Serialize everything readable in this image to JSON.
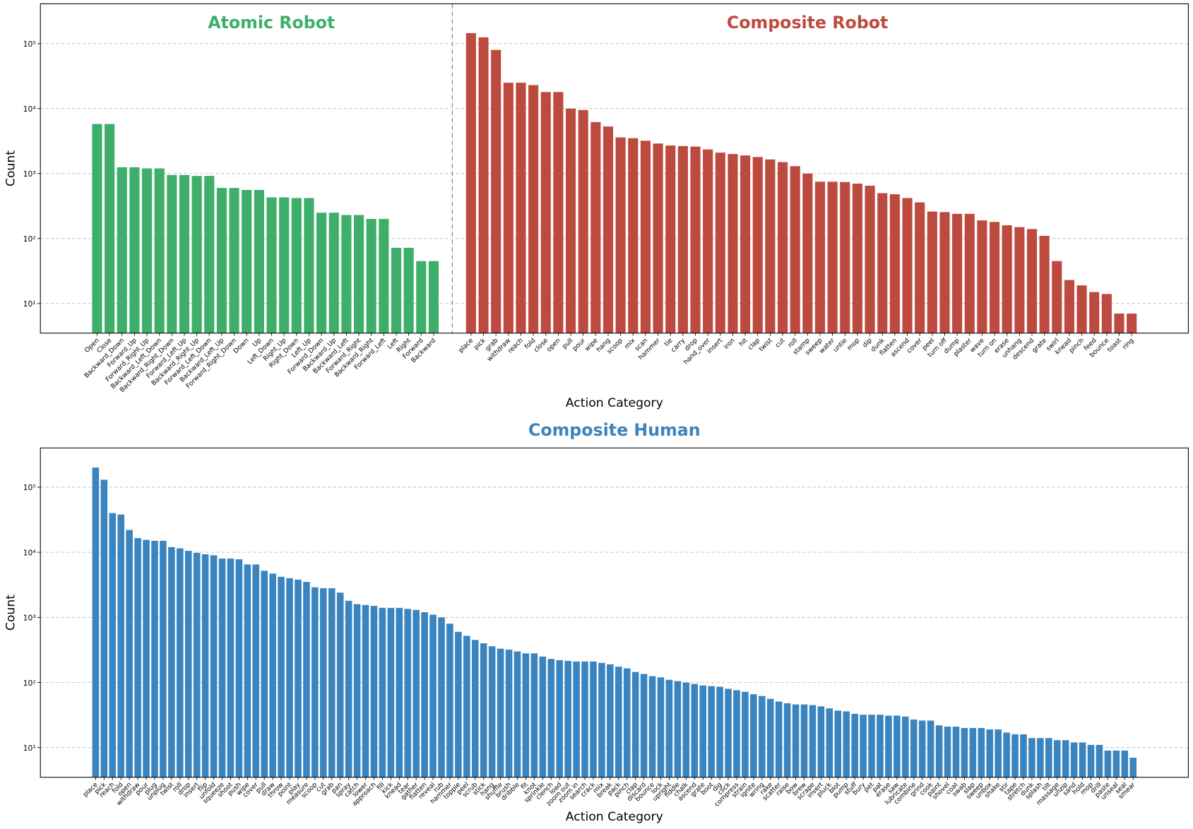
{
  "chart_data": [
    {
      "type": "bar",
      "xlabel": "Action Category",
      "ylabel": "Count",
      "log": true,
      "grid": true,
      "ylim": [
        3.5,
        410000
      ],
      "yticks": [
        {
          "value": 10,
          "label": "10¹"
        },
        {
          "value": 100,
          "label": "10²"
        },
        {
          "value": 1000,
          "label": "10³"
        },
        {
          "value": 10000,
          "label": "10⁴"
        },
        {
          "value": 100000,
          "label": "10⁵"
        }
      ],
      "series": [
        {
          "name": "Atomic Robot",
          "color": "#3daf6a",
          "categories": [
            "Open",
            "Close",
            "Backward_Down",
            "Forward_Up",
            "Forward_Right_Up",
            "Backward_Left_Down",
            "Backward_Right_Down",
            "Forward_Left_Up",
            "Backward_Right_Up",
            "Forward_Left_Down",
            "Backward_Left_Up",
            "Forward_Right_Down",
            "Down",
            "Up",
            "Left_Down",
            "Right_Up",
            "Right_Down",
            "Left_Up",
            "Forward_Down",
            "Backward_Up",
            "Backward_Left",
            "Forward_Right",
            "Backward_Right",
            "Forward_Left",
            "Left",
            "Right",
            "Forward",
            "Backward"
          ],
          "values": [
            5800,
            5800,
            1250,
            1250,
            1200,
            1200,
            950,
            950,
            920,
            920,
            600,
            600,
            560,
            560,
            430,
            430,
            420,
            420,
            250,
            250,
            230,
            230,
            200,
            200,
            72,
            72,
            45,
            45
          ]
        },
        {
          "name": "Composite Robot",
          "color": "#bd4a3e",
          "categories": [
            "place",
            "pick",
            "grab",
            "withdraw",
            "reach",
            "fold",
            "close",
            "open",
            "pull",
            "pour",
            "wipe",
            "hang",
            "scoop",
            "mix",
            "scan",
            "hammer",
            "tie",
            "carry",
            "drop",
            "hand_over",
            "insert",
            "iron",
            "hit",
            "clap",
            "twist",
            "cut",
            "roll",
            "stamp",
            "sweep",
            "water",
            "untie",
            "mop",
            "dip",
            "dunk",
            "flatten",
            "ascend",
            "cover",
            "peel",
            "turn off",
            "dump",
            "plaster",
            "wave",
            "turn on",
            "erase",
            "unhang",
            "descend",
            "grate",
            "swirl",
            "knead",
            "pinch",
            "feed",
            "bounce",
            "toast",
            "ring"
          ],
          "values": [
            145000,
            125000,
            80000,
            25000,
            25000,
            23000,
            18000,
            18000,
            10000,
            9500,
            6200,
            5300,
            3600,
            3500,
            3200,
            2900,
            2700,
            2650,
            2600,
            2350,
            2100,
            2000,
            1900,
            1800,
            1650,
            1500,
            1300,
            1000,
            750,
            750,
            740,
            700,
            650,
            500,
            480,
            420,
            360,
            260,
            255,
            240,
            240,
            190,
            180,
            160,
            150,
            140,
            110,
            45,
            23,
            19,
            15,
            14,
            7,
            7
          ]
        }
      ]
    },
    {
      "type": "bar",
      "title": "Composite Human",
      "xlabel": "Action Category",
      "ylabel": "Count",
      "log": true,
      "grid": true,
      "color": "#3a84bf",
      "ylim": [
        3.5,
        400000
      ],
      "yticks": [
        {
          "value": 10,
          "label": "10¹"
        },
        {
          "value": 100,
          "label": "10²"
        },
        {
          "value": 1000,
          "label": "10³"
        },
        {
          "value": 10000,
          "label": "10⁴"
        },
        {
          "value": 100000,
          "label": "10⁵"
        }
      ],
      "categories": [
        "place",
        "pick",
        "reach",
        "fold",
        "open",
        "withdraw",
        "pour",
        "plug",
        "unplug",
        "twist",
        "roll",
        "drop",
        "insert",
        "flip",
        "unfold",
        "squeeze",
        "shoot",
        "push",
        "wipe",
        "cover",
        "pull",
        "draw",
        "throw",
        "point",
        "play",
        "measure",
        "scoop",
        "cut",
        "grab",
        "pan",
        "spray",
        "catch",
        "lower",
        "approach",
        "fill",
        "kick",
        "knead",
        "tear",
        "gather",
        "flatten",
        "reveal",
        "rub",
        "hammer",
        "topple",
        "peel",
        "scrub",
        "stick",
        "hang",
        "shuffle",
        "brush",
        "dribble",
        "fit",
        "knot",
        "sprinkle",
        "clench",
        "load",
        "zoom out",
        "zoom in",
        "search",
        "crack",
        "mix",
        "break",
        "pack",
        "pinch",
        "clap",
        "discard",
        "bounce",
        "lock",
        "upright",
        "fiddle",
        "chalk",
        "ascend",
        "grate",
        "boot",
        "dig",
        "click",
        "compress",
        "strain",
        "ignite",
        "wring",
        "rake",
        "scatter",
        "raise",
        "bow",
        "brew",
        "scrape",
        "invert",
        "pluck",
        "blot",
        "pump",
        "stuff",
        "bury",
        "pet",
        "pat",
        "erase",
        "saw",
        "lubricate",
        "combine",
        "grind",
        "cook",
        "paint",
        "shovel",
        "coat",
        "swab",
        "slap",
        "sweep",
        "unbox",
        "shake",
        "stir",
        "tape",
        "stretch",
        "dunk",
        "splash",
        "tilt",
        "massage",
        "unzip",
        "sand",
        "hold",
        "mop",
        "drill",
        "paste",
        "unseal",
        "seal",
        "smear"
      ],
      "values": [
        200000,
        130000,
        40000,
        38000,
        22000,
        16500,
        15500,
        15000,
        15000,
        12000,
        11500,
        10500,
        9800,
        9300,
        9000,
        8000,
        8000,
        7800,
        6500,
        6500,
        5200,
        4700,
        4200,
        4000,
        3800,
        3500,
        2900,
        2800,
        2800,
        2400,
        1800,
        1600,
        1550,
        1500,
        1400,
        1400,
        1400,
        1350,
        1300,
        1200,
        1100,
        1000,
        800,
        600,
        520,
        450,
        400,
        360,
        330,
        320,
        300,
        280,
        280,
        250,
        230,
        220,
        215,
        210,
        210,
        210,
        200,
        190,
        175,
        165,
        145,
        135,
        125,
        120,
        110,
        105,
        100,
        95,
        90,
        88,
        86,
        80,
        76,
        72,
        66,
        62,
        56,
        51,
        48,
        46,
        46,
        45,
        43,
        40,
        37,
        36,
        33,
        32,
        32,
        32,
        31,
        31,
        30,
        27,
        26,
        26,
        22,
        21,
        21,
        20,
        20,
        20,
        19,
        19,
        17,
        16,
        16,
        14,
        14,
        14,
        13,
        13,
        12,
        12,
        11,
        11,
        9,
        9,
        9,
        7
      ]
    }
  ]
}
